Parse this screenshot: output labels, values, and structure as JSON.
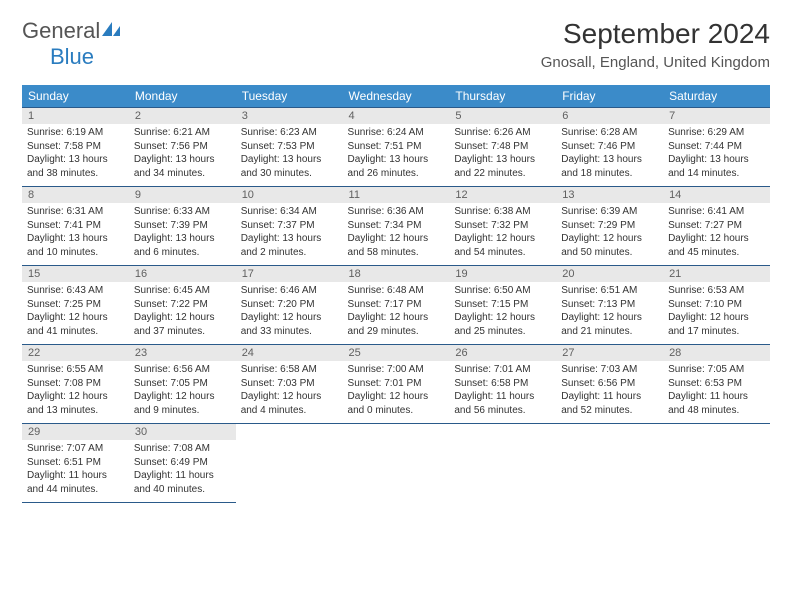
{
  "brand": {
    "general": "General",
    "blue": "Blue"
  },
  "title": "September 2024",
  "location": "Gnosall, England, United Kingdom",
  "colors": {
    "header_bg": "#3b8bc9",
    "header_text": "#ffffff",
    "daynum_bg": "#e8e8e8",
    "daynum_text": "#606060",
    "border": "#2a5a8a",
    "body_text": "#333333",
    "logo_blue": "#2a7cbf"
  },
  "day_headers": [
    "Sunday",
    "Monday",
    "Tuesday",
    "Wednesday",
    "Thursday",
    "Friday",
    "Saturday"
  ],
  "weeks": [
    [
      {
        "day": "1",
        "sunrise": "Sunrise: 6:19 AM",
        "sunset": "Sunset: 7:58 PM",
        "daylight": "Daylight: 13 hours and 38 minutes."
      },
      {
        "day": "2",
        "sunrise": "Sunrise: 6:21 AM",
        "sunset": "Sunset: 7:56 PM",
        "daylight": "Daylight: 13 hours and 34 minutes."
      },
      {
        "day": "3",
        "sunrise": "Sunrise: 6:23 AM",
        "sunset": "Sunset: 7:53 PM",
        "daylight": "Daylight: 13 hours and 30 minutes."
      },
      {
        "day": "4",
        "sunrise": "Sunrise: 6:24 AM",
        "sunset": "Sunset: 7:51 PM",
        "daylight": "Daylight: 13 hours and 26 minutes."
      },
      {
        "day": "5",
        "sunrise": "Sunrise: 6:26 AM",
        "sunset": "Sunset: 7:48 PM",
        "daylight": "Daylight: 13 hours and 22 minutes."
      },
      {
        "day": "6",
        "sunrise": "Sunrise: 6:28 AM",
        "sunset": "Sunset: 7:46 PM",
        "daylight": "Daylight: 13 hours and 18 minutes."
      },
      {
        "day": "7",
        "sunrise": "Sunrise: 6:29 AM",
        "sunset": "Sunset: 7:44 PM",
        "daylight": "Daylight: 13 hours and 14 minutes."
      }
    ],
    [
      {
        "day": "8",
        "sunrise": "Sunrise: 6:31 AM",
        "sunset": "Sunset: 7:41 PM",
        "daylight": "Daylight: 13 hours and 10 minutes."
      },
      {
        "day": "9",
        "sunrise": "Sunrise: 6:33 AM",
        "sunset": "Sunset: 7:39 PM",
        "daylight": "Daylight: 13 hours and 6 minutes."
      },
      {
        "day": "10",
        "sunrise": "Sunrise: 6:34 AM",
        "sunset": "Sunset: 7:37 PM",
        "daylight": "Daylight: 13 hours and 2 minutes."
      },
      {
        "day": "11",
        "sunrise": "Sunrise: 6:36 AM",
        "sunset": "Sunset: 7:34 PM",
        "daylight": "Daylight: 12 hours and 58 minutes."
      },
      {
        "day": "12",
        "sunrise": "Sunrise: 6:38 AM",
        "sunset": "Sunset: 7:32 PM",
        "daylight": "Daylight: 12 hours and 54 minutes."
      },
      {
        "day": "13",
        "sunrise": "Sunrise: 6:39 AM",
        "sunset": "Sunset: 7:29 PM",
        "daylight": "Daylight: 12 hours and 50 minutes."
      },
      {
        "day": "14",
        "sunrise": "Sunrise: 6:41 AM",
        "sunset": "Sunset: 7:27 PM",
        "daylight": "Daylight: 12 hours and 45 minutes."
      }
    ],
    [
      {
        "day": "15",
        "sunrise": "Sunrise: 6:43 AM",
        "sunset": "Sunset: 7:25 PM",
        "daylight": "Daylight: 12 hours and 41 minutes."
      },
      {
        "day": "16",
        "sunrise": "Sunrise: 6:45 AM",
        "sunset": "Sunset: 7:22 PM",
        "daylight": "Daylight: 12 hours and 37 minutes."
      },
      {
        "day": "17",
        "sunrise": "Sunrise: 6:46 AM",
        "sunset": "Sunset: 7:20 PM",
        "daylight": "Daylight: 12 hours and 33 minutes."
      },
      {
        "day": "18",
        "sunrise": "Sunrise: 6:48 AM",
        "sunset": "Sunset: 7:17 PM",
        "daylight": "Daylight: 12 hours and 29 minutes."
      },
      {
        "day": "19",
        "sunrise": "Sunrise: 6:50 AM",
        "sunset": "Sunset: 7:15 PM",
        "daylight": "Daylight: 12 hours and 25 minutes."
      },
      {
        "day": "20",
        "sunrise": "Sunrise: 6:51 AM",
        "sunset": "Sunset: 7:13 PM",
        "daylight": "Daylight: 12 hours and 21 minutes."
      },
      {
        "day": "21",
        "sunrise": "Sunrise: 6:53 AM",
        "sunset": "Sunset: 7:10 PM",
        "daylight": "Daylight: 12 hours and 17 minutes."
      }
    ],
    [
      {
        "day": "22",
        "sunrise": "Sunrise: 6:55 AM",
        "sunset": "Sunset: 7:08 PM",
        "daylight": "Daylight: 12 hours and 13 minutes."
      },
      {
        "day": "23",
        "sunrise": "Sunrise: 6:56 AM",
        "sunset": "Sunset: 7:05 PM",
        "daylight": "Daylight: 12 hours and 9 minutes."
      },
      {
        "day": "24",
        "sunrise": "Sunrise: 6:58 AM",
        "sunset": "Sunset: 7:03 PM",
        "daylight": "Daylight: 12 hours and 4 minutes."
      },
      {
        "day": "25",
        "sunrise": "Sunrise: 7:00 AM",
        "sunset": "Sunset: 7:01 PM",
        "daylight": "Daylight: 12 hours and 0 minutes."
      },
      {
        "day": "26",
        "sunrise": "Sunrise: 7:01 AM",
        "sunset": "Sunset: 6:58 PM",
        "daylight": "Daylight: 11 hours and 56 minutes."
      },
      {
        "day": "27",
        "sunrise": "Sunrise: 7:03 AM",
        "sunset": "Sunset: 6:56 PM",
        "daylight": "Daylight: 11 hours and 52 minutes."
      },
      {
        "day": "28",
        "sunrise": "Sunrise: 7:05 AM",
        "sunset": "Sunset: 6:53 PM",
        "daylight": "Daylight: 11 hours and 48 minutes."
      }
    ],
    [
      {
        "day": "29",
        "sunrise": "Sunrise: 7:07 AM",
        "sunset": "Sunset: 6:51 PM",
        "daylight": "Daylight: 11 hours and 44 minutes."
      },
      {
        "day": "30",
        "sunrise": "Sunrise: 7:08 AM",
        "sunset": "Sunset: 6:49 PM",
        "daylight": "Daylight: 11 hours and 40 minutes."
      },
      null,
      null,
      null,
      null,
      null
    ]
  ]
}
